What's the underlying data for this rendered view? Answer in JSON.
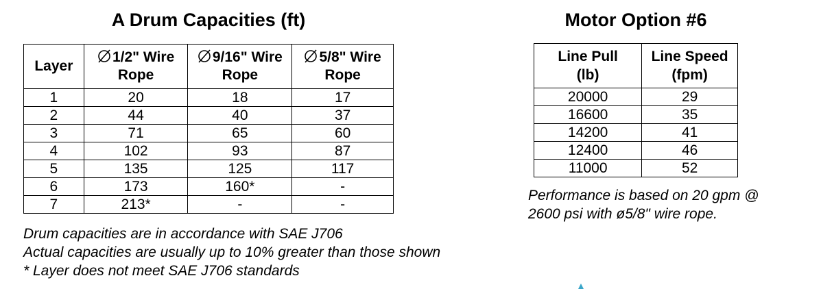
{
  "drum": {
    "title": "A Drum Capacities (ft)",
    "headers": {
      "layer": "Layer",
      "col1": [
        "1/2\" Wire",
        "Rope"
      ],
      "col2": [
        "9/16\" Wire",
        "Rope"
      ],
      "col3": [
        "5/8\" Wire",
        "Rope"
      ]
    },
    "rows": [
      [
        "1",
        "20",
        "18",
        "17"
      ],
      [
        "2",
        "44",
        "40",
        "37"
      ],
      [
        "3",
        "71",
        "65",
        "60"
      ],
      [
        "4",
        "102",
        "93",
        "87"
      ],
      [
        "5",
        "135",
        "125",
        "117"
      ],
      [
        "6",
        "173",
        "160*",
        "-"
      ],
      [
        "7",
        "213*",
        "-",
        "-"
      ]
    ],
    "notes": [
      "Drum capacities are in accordance with SAE J706",
      "Actual capacities are usually up to 10% greater than those shown",
      "* Layer does not meet SAE J706 standards"
    ]
  },
  "motor": {
    "title": "Motor Option #6",
    "headers": {
      "pull": [
        "Line Pull",
        "(lb)"
      ],
      "speed": [
        "Line Speed",
        "(fpm)"
      ]
    },
    "rows": [
      [
        "20000",
        "29"
      ],
      [
        "16600",
        "35"
      ],
      [
        "14200",
        "41"
      ],
      [
        "12400",
        "46"
      ],
      [
        "11000",
        "52"
      ]
    ],
    "note": [
      "Performance is based on 20 gpm @",
      "2600 psi with ø5/8\" wire rope."
    ]
  },
  "icons": {
    "diameter": "diameter-symbol-icon"
  },
  "colors": {
    "mark": "#3aa6c9"
  }
}
